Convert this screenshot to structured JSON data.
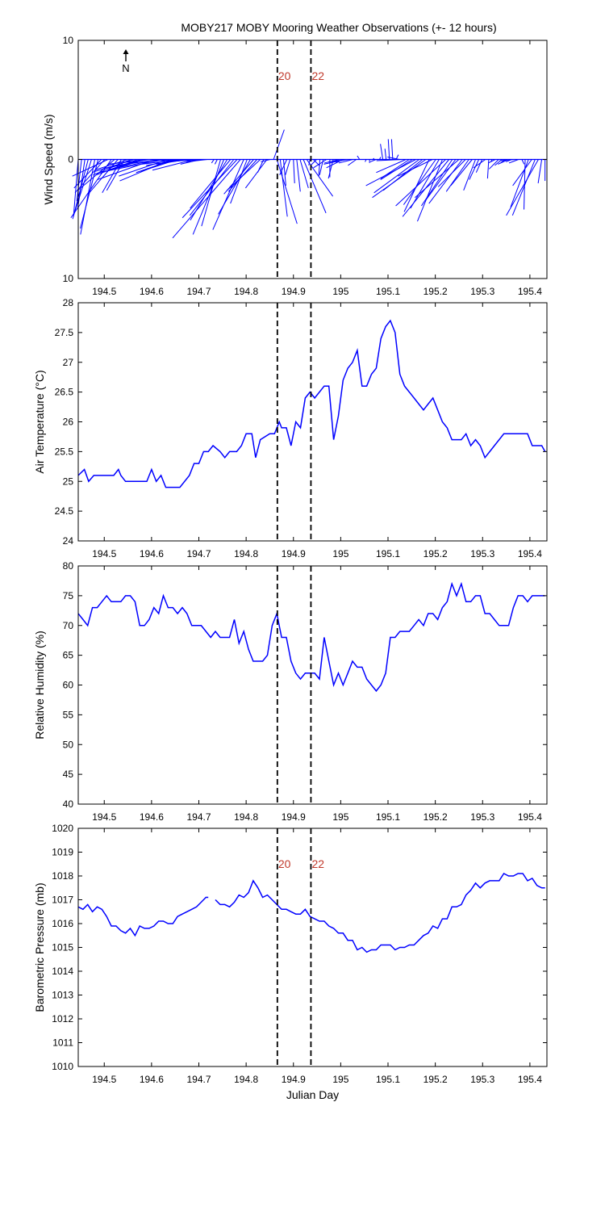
{
  "figure_title": "MOBY217 MOBY Mooring Weather Observations (+- 12 hours)",
  "colors": {
    "series": "#0000ff",
    "marker_label": "#c0392b",
    "axis": "#000000"
  },
  "north_label": "N",
  "chart_data": [
    {
      "type": "vector",
      "ylabel": "Wind Speed (m/s)",
      "xlabel": "",
      "xlim": [
        194.445,
        195.436
      ],
      "ylim": [
        -10,
        10
      ],
      "yticks": [
        10,
        0,
        10
      ],
      "xticks": [
        "194.5",
        "194.6",
        "194.7",
        "194.8",
        "194.9",
        "195",
        "195.1",
        "195.2",
        "195.3",
        "195.4"
      ],
      "markers": [
        {
          "x": 194.866,
          "label": "20"
        },
        {
          "x": 194.937,
          "label": "22"
        }
      ],
      "x": [
        194.445,
        194.452,
        194.459,
        194.466,
        194.473,
        194.48,
        194.487,
        194.494,
        194.501,
        194.508,
        194.515,
        194.522,
        194.529,
        194.536,
        194.543,
        194.55,
        194.557,
        194.564,
        194.571,
        194.578,
        194.585,
        194.592,
        194.599,
        194.606,
        194.613,
        194.62,
        194.627,
        194.634,
        194.641,
        194.648,
        194.655,
        194.662,
        194.669,
        194.676,
        194.683,
        194.69,
        194.697,
        194.704,
        194.711,
        194.718,
        194.725,
        194.732,
        194.739,
        194.746,
        194.753,
        194.76,
        194.767,
        194.774,
        194.781,
        194.788,
        194.795,
        194.802,
        194.809,
        194.816,
        194.823,
        194.83,
        194.837,
        194.844,
        194.851,
        194.858,
        194.865,
        194.872,
        194.879,
        194.886,
        194.893,
        194.9,
        194.907,
        194.914,
        194.921,
        194.928,
        194.935,
        194.942,
        194.949,
        194.956,
        194.963,
        194.97,
        194.977,
        194.984,
        194.991,
        194.998,
        195.005,
        195.012,
        195.019,
        195.026,
        195.033,
        195.04,
        195.047,
        195.054,
        195.061,
        195.068,
        195.075,
        195.082,
        195.089,
        195.096,
        195.103,
        195.11,
        195.117,
        195.124,
        195.131,
        195.138,
        195.145,
        195.152,
        195.159,
        195.166,
        195.173,
        195.18,
        195.187,
        195.194,
        195.201,
        195.208,
        195.215,
        195.222,
        195.229,
        195.236,
        195.243,
        195.25,
        195.257,
        195.264,
        195.271,
        195.278,
        195.285,
        195.292,
        195.299,
        195.306,
        195.313,
        195.32,
        195.327,
        195.334,
        195.341,
        195.348,
        195.355,
        195.362,
        195.369,
        195.376,
        195.383,
        195.39,
        195.397,
        195.404,
        195.411,
        195.418,
        195.425,
        195.432
      ],
      "u": [
        -0.4,
        -0.4,
        -0.6,
        -1.3,
        -1.5,
        -1.2,
        -1.5,
        -2.3,
        -2.5,
        -3,
        -3.4,
        -3.1,
        -2.5,
        -1.6,
        -1.5,
        -2.8,
        -3.2,
        -3.3,
        -3.5,
        -2.8,
        -3.2,
        -3.8,
        -3.6,
        -4.8,
        -3.8,
        -3.7,
        -5.5,
        -4.1,
        -4.3,
        -3.2,
        -3.1,
        -3.3,
        -3.2,
        -2.6,
        -3.3,
        -3.5,
        -2.6,
        -1.7,
        -1.4,
        -1.8,
        -1.2,
        -0.2,
        -0.2,
        -1.6,
        -2.6,
        -3.1,
        -3.4,
        -3.7,
        -4.6,
        -5.7,
        -2.6,
        -1.4,
        -2.7,
        -2.5,
        -2.4,
        -2.8,
        -0.5,
        -1.8,
        -0.8,
        0.9,
        1.7,
        0.6,
        0.2,
        -0.6,
        -0.4,
        0.1,
        0.3,
        0.7,
        1.9,
        2.2,
        -0.1,
        0.5,
        -0.5,
        -0.1,
        -0.3,
        -1.1,
        0,
        -0.4,
        0,
        -1.3,
        -1.4,
        -1.9,
        -1.8,
        -1.2,
        -0.7,
        -0.2,
        0.3,
        -0.1,
        0,
        0.1,
        -0.5,
        0.1,
        -0.2,
        -0.1,
        -0.1,
        -0.1,
        0.2,
        -1,
        -2.2,
        -2.5,
        -2.4,
        -2.7,
        -4.2,
        -3.8,
        -3.3,
        -4.5,
        -2.1,
        -2.9,
        -2.7,
        -2.4,
        -2.1,
        -4.2,
        -3.9,
        -2.6,
        -2.5,
        -3.7,
        -2.8,
        -2.3,
        -1.9,
        -1.8,
        -1,
        -0.8,
        -0.5,
        -1,
        -0.1,
        -0.1,
        -0.6,
        -0.8,
        -0.6,
        -0.4,
        -0.9,
        -0.5,
        -1.3,
        -0.8,
        0.2,
        -0.1,
        -1.5,
        -1.6,
        -1.9,
        -2.7,
        -0.3,
        0
      ],
      "v": [
        -4.8,
        -3.5,
        -4.1,
        -5,
        -4.7,
        -6.3,
        -5.8,
        -2.4,
        -2.8,
        -1.4,
        -4.9,
        -2.6,
        -2.9,
        -2.8,
        -2.6,
        -0.9,
        -1.3,
        -1,
        -1.3,
        -0.9,
        -1,
        -0.8,
        -0.4,
        -1.7,
        -0.8,
        -0.5,
        -1.1,
        -1.4,
        -1.8,
        -1.1,
        -1,
        -0.4,
        -0.5,
        -0.4,
        -0.1,
        -0.9,
        -0.2,
        -0.4,
        -0.1,
        -0.2,
        0,
        -0.3,
        -0.4,
        -5.6,
        -6.3,
        -5.1,
        -4.1,
        -4.7,
        -4.9,
        -6.6,
        -5.9,
        -3.7,
        -4.6,
        -2.9,
        -2.7,
        -2.6,
        -1.1,
        -2.4,
        -0.2,
        2.5,
        -5.4,
        -4.8,
        -2.2,
        -1.3,
        -1.3,
        -2,
        -2.7,
        -2.4,
        -4.5,
        -3.1,
        -0.5,
        -0.5,
        -0.5,
        -1.4,
        -1.3,
        -0.7,
        -1.5,
        -1.6,
        -0.3,
        -0.3,
        -0.7,
        -0.4,
        -0.2,
        -0.3,
        -0.5,
        0.3,
        0,
        -0.2,
        -0.3,
        0.1,
        -0.2,
        0.2,
        1.3,
        0.9,
        1.7,
        1.7,
        0.4,
        0.2,
        -0.1,
        -1.1,
        -1.6,
        -1.7,
        -2.2,
        -2.8,
        -2.6,
        -3.2,
        -4.4,
        -1.4,
        -3.8,
        -4.1,
        -5.2,
        -3.9,
        -4.8,
        -3.9,
        -3.4,
        -3.2,
        -3.7,
        -2.3,
        -2.7,
        -2.2,
        -2.6,
        -1.7,
        -1.1,
        -0.7,
        -1.6,
        -0.2,
        -0.3,
        -0.8,
        -0.5,
        -0.3,
        -0.4,
        -0.2,
        -0.1,
        -0.3,
        -0.4,
        -4.2,
        -4,
        -2.2,
        -4.7,
        -4.7,
        -2,
        -1.8
      ]
    },
    {
      "type": "line",
      "ylabel": "Air Temperature (°C)",
      "xlabel": "",
      "xlim": [
        194.445,
        195.436
      ],
      "ylim": [
        24,
        28
      ],
      "yticks": [
        "24",
        "24.5",
        "25",
        "25.5",
        "26",
        "26.5",
        "27",
        "27.5",
        "28"
      ],
      "xticks": [
        "194.5",
        "194.6",
        "194.7",
        "194.8",
        "194.9",
        "195",
        "195.1",
        "195.2",
        "195.3",
        "195.4"
      ],
      "markers": [
        {
          "x": 194.866,
          "label": ""
        },
        {
          "x": 194.937,
          "label": ""
        }
      ],
      "x": [
        194.445,
        194.458,
        194.467,
        194.478,
        194.49,
        194.5,
        194.52,
        194.53,
        194.535,
        194.545,
        194.555,
        194.58,
        194.59,
        194.6,
        194.61,
        194.62,
        194.63,
        194.65,
        194.66,
        194.68,
        194.69,
        194.7,
        194.71,
        194.72,
        194.73,
        194.745,
        194.755,
        194.765,
        194.78,
        194.79,
        194.8,
        194.812,
        194.82,
        194.83,
        194.85,
        194.86,
        194.87,
        194.875,
        194.885,
        194.895,
        194.905,
        194.915,
        194.925,
        194.935,
        194.945,
        194.955,
        194.965,
        194.975,
        194.985,
        194.995,
        195.005,
        195.015,
        195.025,
        195.035,
        195.045,
        195.055,
        195.065,
        195.075,
        195.085,
        195.095,
        195.105,
        195.115,
        195.125,
        195.135,
        195.145,
        195.155,
        195.165,
        195.175,
        195.185,
        195.195,
        195.205,
        195.215,
        195.225,
        195.235,
        195.245,
        195.255,
        195.265,
        195.275,
        195.285,
        195.295,
        195.305,
        195.315,
        195.325,
        195.335,
        195.345,
        195.355,
        195.365,
        195.375,
        195.385,
        195.395,
        195.405,
        195.415,
        195.425,
        195.432
      ],
      "y": [
        25.1,
        25.2,
        25,
        25.1,
        25.1,
        25.1,
        25.1,
        25.2,
        25.1,
        25,
        25,
        25,
        25,
        25.2,
        25,
        25.1,
        24.9,
        24.9,
        24.9,
        25.1,
        25.3,
        25.3,
        25.5,
        25.5,
        25.6,
        25.5,
        25.4,
        25.5,
        25.5,
        25.6,
        25.8,
        25.8,
        25.4,
        25.7,
        25.8,
        25.8,
        26,
        25.9,
        25.9,
        25.6,
        26,
        25.9,
        26.4,
        26.5,
        26.4,
        26.5,
        26.6,
        26.6,
        25.7,
        26.1,
        26.7,
        26.9,
        27,
        27.2,
        26.6,
        26.6,
        26.8,
        26.9,
        27.4,
        27.6,
        27.7,
        27.5,
        26.8,
        26.6,
        26.5,
        26.4,
        26.3,
        26.2,
        26.3,
        26.4,
        26.2,
        26,
        25.9,
        25.7,
        25.7,
        25.7,
        25.8,
        25.6,
        25.7,
        25.6,
        25.4,
        25.5,
        25.6,
        25.7,
        25.8,
        25.8,
        25.8,
        25.8,
        25.8,
        25.8,
        25.6,
        25.6,
        25.6,
        25.5
      ]
    },
    {
      "type": "line",
      "ylabel": "Relative Humidity (%)",
      "xlabel": "",
      "xlim": [
        194.445,
        195.436
      ],
      "ylim": [
        40,
        80
      ],
      "yticks": [
        "40",
        "45",
        "50",
        "55",
        "60",
        "65",
        "70",
        "75",
        "80"
      ],
      "xticks": [
        "194.5",
        "194.6",
        "194.7",
        "194.8",
        "194.9",
        "195",
        "195.1",
        "195.2",
        "195.3",
        "195.4"
      ],
      "markers": [
        {
          "x": 194.866,
          "label": ""
        },
        {
          "x": 194.937,
          "label": ""
        }
      ],
      "x": [
        194.445,
        194.455,
        194.465,
        194.475,
        194.485,
        194.495,
        194.505,
        194.515,
        194.525,
        194.535,
        194.545,
        194.555,
        194.565,
        194.575,
        194.585,
        194.595,
        194.605,
        194.615,
        194.625,
        194.635,
        194.645,
        194.655,
        194.665,
        194.675,
        194.685,
        194.695,
        194.705,
        194.715,
        194.725,
        194.735,
        194.745,
        194.755,
        194.765,
        194.775,
        194.785,
        194.795,
        194.805,
        194.815,
        194.825,
        194.835,
        194.845,
        194.855,
        194.865,
        194.875,
        194.885,
        194.895,
        194.905,
        194.915,
        194.925,
        194.935,
        194.945,
        194.955,
        194.965,
        194.975,
        194.985,
        194.995,
        195.005,
        195.015,
        195.025,
        195.035,
        195.045,
        195.055,
        195.065,
        195.075,
        195.085,
        195.095,
        195.105,
        195.115,
        195.125,
        195.135,
        195.145,
        195.155,
        195.165,
        195.175,
        195.185,
        195.195,
        195.205,
        195.215,
        195.225,
        195.235,
        195.245,
        195.255,
        195.265,
        195.275,
        195.285,
        195.295,
        195.305,
        195.315,
        195.325,
        195.335,
        195.345,
        195.355,
        195.365,
        195.375,
        195.385,
        195.395,
        195.405,
        195.415,
        195.425,
        195.432
      ],
      "y": [
        72,
        71,
        70,
        73,
        73,
        74,
        75,
        74,
        74,
        74,
        75,
        75,
        74,
        70,
        70,
        71,
        73,
        72,
        75,
        73,
        73,
        72,
        73,
        72,
        70,
        70,
        70,
        69,
        68,
        69,
        68,
        68,
        68,
        71,
        67,
        69,
        66,
        64,
        64,
        64,
        65,
        70,
        72,
        68,
        68,
        64,
        62,
        61,
        62,
        62,
        62,
        61,
        68,
        64,
        60,
        62,
        60,
        62,
        64,
        63,
        63,
        61,
        60,
        59,
        60,
        62,
        68,
        68,
        69,
        69,
        69,
        70,
        71,
        70,
        72,
        72,
        71,
        73,
        74,
        77,
        75,
        77,
        74,
        74,
        75,
        75,
        72,
        72,
        71,
        70,
        70,
        70,
        73,
        75,
        75,
        74,
        75,
        75,
        75,
        75
      ],
      "_note": ""
    },
    {
      "type": "line",
      "ylabel": "Barometric Pressure (mb)",
      "xlabel": "Julian Day",
      "xlim": [
        194.445,
        195.436
      ],
      "ylim": [
        1010,
        1020
      ],
      "yticks": [
        "1010",
        "1011",
        "1012",
        "1013",
        "1014",
        "1015",
        "1016",
        "1017",
        "1018",
        "1019",
        "1020"
      ],
      "xticks": [
        "194.5",
        "194.6",
        "194.7",
        "194.8",
        "194.9",
        "195",
        "195.1",
        "195.2",
        "195.3",
        "195.4"
      ],
      "markers": [
        {
          "x": 194.866,
          "label": "20"
        },
        {
          "x": 194.937,
          "label": "22"
        }
      ],
      "segments": [
        {
          "x": [
            194.445,
            194.455,
            194.465,
            194.475,
            194.485,
            194.495,
            194.505,
            194.515,
            194.525,
            194.535,
            194.545,
            194.555,
            194.565,
            194.575,
            194.585,
            194.595,
            194.605,
            194.615,
            194.625,
            194.635,
            194.645,
            194.655,
            194.665,
            194.675,
            194.685,
            194.695,
            194.705,
            194.715,
            194.72
          ],
          "y": [
            1016.7,
            1016.6,
            1016.8,
            1016.5,
            1016.7,
            1016.6,
            1016.3,
            1015.9,
            1015.9,
            1015.7,
            1015.6,
            1015.8,
            1015.5,
            1015.9,
            1015.8,
            1015.8,
            1015.9,
            1016.1,
            1016.1,
            1016,
            1016,
            1016.3,
            1016.4,
            1016.5,
            1016.6,
            1016.7,
            1016.9,
            1017.1,
            1017.1
          ]
        },
        {
          "x": [
            194.735,
            194.745,
            194.755,
            194.765,
            194.775,
            194.785,
            194.795,
            194.805,
            194.815,
            194.825,
            194.835,
            194.845,
            194.855,
            194.865,
            194.875,
            194.885,
            194.895,
            194.905,
            194.915,
            194.925,
            194.935,
            194.945,
            194.955,
            194.965,
            194.975,
            194.985,
            194.995,
            195.005,
            195.015,
            195.025,
            195.035,
            195.045,
            195.055,
            195.065,
            195.075,
            195.085,
            195.095,
            195.105,
            195.115,
            195.125,
            195.135,
            195.145,
            195.155,
            195.165,
            195.175,
            195.185,
            195.195,
            195.205,
            195.215,
            195.225,
            195.235,
            195.245,
            195.255,
            195.265,
            195.275,
            195.285,
            195.295,
            195.305,
            195.315,
            195.325,
            195.335,
            195.345,
            195.355,
            195.365,
            195.375,
            195.385,
            195.395,
            195.405,
            195.415,
            195.425,
            195.432
          ],
          "y": [
            1017,
            1016.8,
            1016.8,
            1016.7,
            1016.9,
            1017.2,
            1017.1,
            1017.3,
            1017.8,
            1017.5,
            1017.1,
            1017.2,
            1017,
            1016.8,
            1016.6,
            1016.6,
            1016.5,
            1016.4,
            1016.4,
            1016.6,
            1016.3,
            1016.2,
            1016.1,
            1016.1,
            1015.9,
            1015.8,
            1015.6,
            1015.6,
            1015.3,
            1015.3,
            1014.9,
            1015,
            1014.8,
            1014.9,
            1014.9,
            1015.1,
            1015.1,
            1015.1,
            1014.9,
            1015,
            1015,
            1015.1,
            1015.1,
            1015.3,
            1015.5,
            1015.6,
            1015.9,
            1015.8,
            1016.2,
            1016.2,
            1016.7,
            1016.7,
            1016.8,
            1017.2,
            1017.4,
            1017.7,
            1017.5,
            1017.7,
            1017.8,
            1017.8,
            1017.8,
            1018.1,
            1018,
            1018,
            1018.1,
            1018.1,
            1017.8,
            1017.9,
            1017.6,
            1017.5,
            1017.5
          ]
        }
      ]
    }
  ]
}
